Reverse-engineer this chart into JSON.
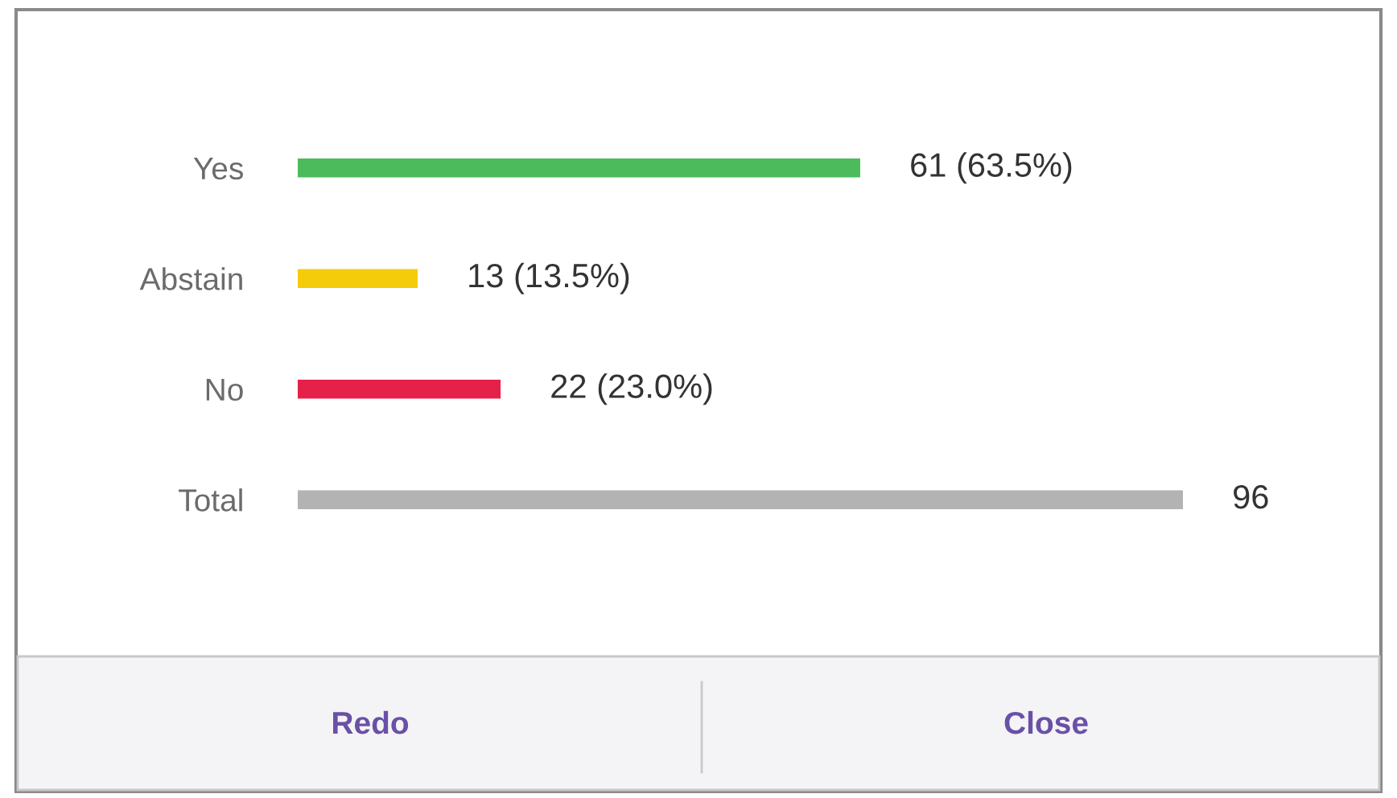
{
  "chart_data": {
    "type": "bar",
    "orientation": "horizontal",
    "categories": [
      "Yes",
      "Abstain",
      "No",
      "Total"
    ],
    "values": [
      61,
      13,
      22,
      96
    ],
    "colors": [
      "#4cbb5c",
      "#f5cc0a",
      "#e5214a",
      "#b3b3b3"
    ],
    "value_labels": [
      "61 (63.5%)",
      "13 (13.5%)",
      "22 (23.0%)",
      "96"
    ],
    "annotations": [
      "Redo",
      "Close"
    ],
    "tick_labels": "y"
  }
}
